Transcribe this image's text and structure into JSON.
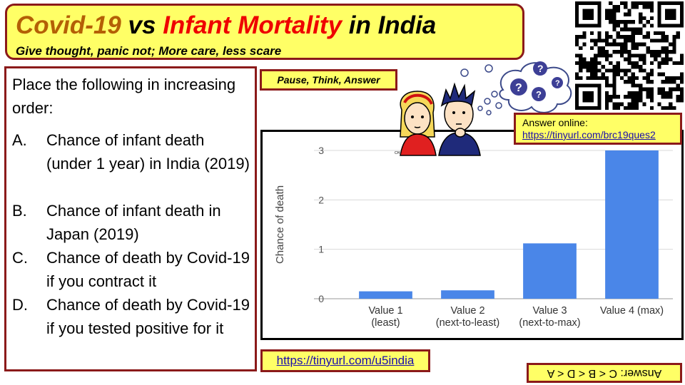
{
  "banner": {
    "title_parts": {
      "covid": "Covid-19",
      "vs": " vs ",
      "infant": "Infant Mortality",
      "india": " in India"
    },
    "subtitle": "Give thought, panic not; More care, less scare"
  },
  "question": {
    "intro": "Place the following in increasing order:",
    "options": [
      {
        "letter": "A.",
        "text": "Chance of infant death (under 1 year) in India (2019)"
      },
      {
        "letter": "B.",
        "text": "Chance of infant death in Japan (2019)"
      },
      {
        "letter": "C.",
        "text": "Chance of death by Covid-19 if you contract it"
      },
      {
        "letter": "D.",
        "text": "Chance of death by Covid-19 if you tested positive for it"
      }
    ]
  },
  "pause_label": "Pause, Think, Answer",
  "thinker_badge": "CH",
  "answer_online": {
    "label": "Answer online:",
    "url": "https://tinyurl.com/brc19ques2"
  },
  "footer_link": "https://tinyurl.com/u5india",
  "answer_upside_down": "Answer: C < B < D < A",
  "colors": {
    "banner_bg": "#ffff66",
    "border": "#8b1a1a",
    "bar": "#4a86e8",
    "title_orange": "#b45f06",
    "title_red": "#ee0000"
  },
  "icons": [
    "qr-code",
    "thinking-cartoon",
    "question-bubble-icon"
  ],
  "chart_data": {
    "type": "bar",
    "categories": [
      [
        "Value 1",
        "(least)"
      ],
      [
        "Value 2",
        "(next-to-least)"
      ],
      [
        "Value 3",
        "(next-to-max)"
      ],
      [
        "Value 4 (max)"
      ]
    ],
    "values": [
      0.15,
      0.17,
      1.12,
      3.0
    ],
    "ylabel": "Chance of death",
    "xlabel": "",
    "title": "",
    "ylim": [
      0,
      3
    ],
    "yticks": [
      0,
      1,
      2,
      3
    ],
    "grid": true,
    "legend": "none"
  }
}
